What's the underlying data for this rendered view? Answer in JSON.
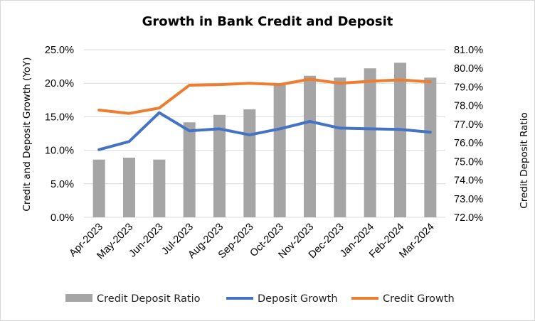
{
  "chart_data": {
    "type": "bar",
    "title": "Growth in Bank Credit and Deposit",
    "categories": [
      "Apr-2023",
      "May-2023",
      "Jun-2023",
      "Jul-2023",
      "Aug-2023",
      "Sep-2023",
      "Oct-2023",
      "Nov-2023",
      "Dec-2023",
      "Jan-2024",
      "Feb-2024",
      "Mar-2024"
    ],
    "ylabel_left": "Credit and Deposit Growth (YoY)",
    "ylabel_right": "Credit Deposit Ratio",
    "ylim_left": [
      0,
      25
    ],
    "ylim_right": [
      72,
      81
    ],
    "yticks_left": [
      "0.0%",
      "5.0%",
      "10.0%",
      "15.0%",
      "20.0%",
      "25.0%"
    ],
    "yticks_right": [
      "72.0%",
      "73.0%",
      "74.0%",
      "75.0%",
      "76.0%",
      "77.0%",
      "78.0%",
      "79.0%",
      "80.0%",
      "81.0%"
    ],
    "legend_position": "bottom",
    "grid": true,
    "series": [
      {
        "name": "Credit Deposit Ratio",
        "type": "bar",
        "axis": "right",
        "color": "#a5a5a5",
        "values": [
          75.1,
          75.2,
          75.1,
          77.1,
          77.5,
          77.8,
          79.1,
          79.6,
          79.5,
          80.0,
          80.3,
          79.5
        ]
      },
      {
        "name": "Deposit Growth",
        "type": "line",
        "axis": "left",
        "color": "#4472c4",
        "values": [
          10.1,
          11.3,
          15.6,
          12.9,
          13.2,
          12.3,
          13.2,
          14.3,
          13.3,
          13.2,
          13.1,
          12.7
        ]
      },
      {
        "name": "Credit Growth",
        "type": "line",
        "axis": "left",
        "color": "#ed7d31",
        "values": [
          16.0,
          15.5,
          16.3,
          19.7,
          19.8,
          20.0,
          19.8,
          20.6,
          20.0,
          20.3,
          20.5,
          20.2
        ]
      }
    ]
  }
}
